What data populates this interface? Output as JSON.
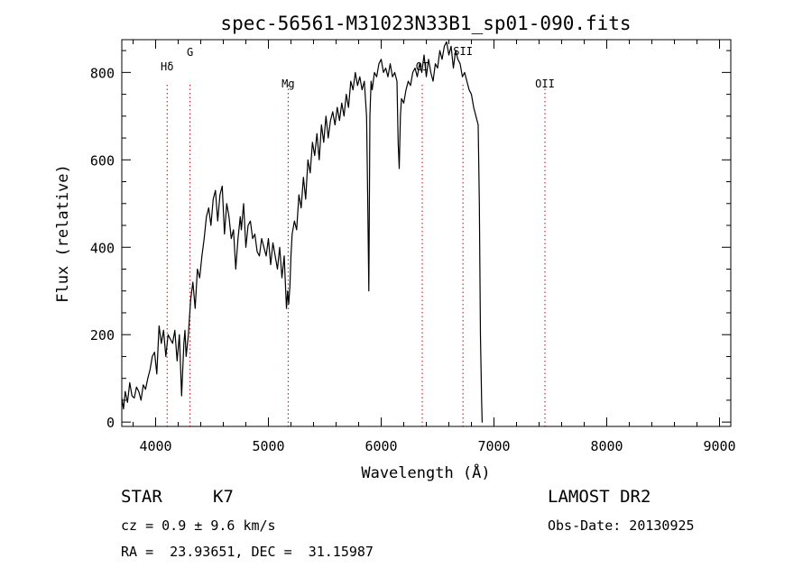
{
  "chart_data": {
    "type": "line",
    "title": "spec-56561-M31023N33B1_sp01-090.fits",
    "xlabel": "Wavelength (Å)",
    "ylabel": "Flux (relative)",
    "xlim": [
      3700,
      9100
    ],
    "ylim": [
      -10,
      875
    ],
    "x_ticks": [
      4000,
      5000,
      6000,
      7000,
      8000,
      9000
    ],
    "y_ticks": [
      0,
      200,
      400,
      600,
      800
    ],
    "grid": false,
    "series": [
      {
        "x": [
          3700,
          3715,
          3730,
          3750,
          3770,
          3790,
          3810,
          3830,
          3850,
          3870,
          3890,
          3910,
          3930,
          3950,
          3970,
          3990,
          4010,
          4030,
          4050,
          4070,
          4090,
          4110,
          4130,
          4150,
          4170,
          4190,
          4210,
          4230,
          4250,
          4260,
          4270,
          4290,
          4310,
          4330,
          4350,
          4370,
          4390,
          4410,
          4430,
          4450,
          4470,
          4490,
          4510,
          4530,
          4550,
          4570,
          4590,
          4610,
          4630,
          4650,
          4670,
          4690,
          4710,
          4730,
          4750,
          4760,
          4780,
          4800,
          4820,
          4840,
          4860,
          4880,
          4900,
          4920,
          4940,
          4960,
          4980,
          5000,
          5020,
          5040,
          5060,
          5080,
          5100,
          5120,
          5140,
          5160,
          5170,
          5180,
          5190,
          5200,
          5210,
          5230,
          5250,
          5270,
          5290,
          5310,
          5330,
          5350,
          5370,
          5390,
          5410,
          5430,
          5450,
          5470,
          5490,
          5510,
          5530,
          5550,
          5570,
          5590,
          5610,
          5630,
          5650,
          5670,
          5690,
          5710,
          5730,
          5750,
          5770,
          5790,
          5810,
          5830,
          5850,
          5870,
          5880,
          5890,
          5900,
          5910,
          5920,
          5940,
          5960,
          5980,
          6000,
          6020,
          6040,
          6060,
          6080,
          6100,
          6120,
          6140,
          6150,
          6160,
          6170,
          6180,
          6200,
          6220,
          6240,
          6260,
          6280,
          6300,
          6320,
          6340,
          6360,
          6380,
          6400,
          6420,
          6440,
          6460,
          6480,
          6500,
          6520,
          6540,
          6560,
          6580,
          6600,
          6620,
          6640,
          6660,
          6680,
          6700,
          6720,
          6740,
          6760,
          6780,
          6800,
          6820,
          6840,
          6860,
          6870,
          6880,
          6890,
          6895,
          6900
        ],
        "y": [
          55,
          30,
          70,
          45,
          90,
          60,
          55,
          80,
          70,
          50,
          85,
          75,
          100,
          120,
          150,
          160,
          110,
          220,
          180,
          210,
          150,
          200,
          190,
          180,
          210,
          140,
          200,
          60,
          180,
          210,
          150,
          200,
          280,
          320,
          260,
          350,
          330,
          380,
          420,
          470,
          490,
          450,
          510,
          530,
          460,
          520,
          540,
          430,
          500,
          470,
          420,
          440,
          350,
          420,
          470,
          440,
          500,
          400,
          450,
          460,
          420,
          430,
          390,
          380,
          420,
          400,
          380,
          420,
          360,
          410,
          380,
          350,
          400,
          330,
          380,
          260,
          300,
          270,
          310,
          380,
          430,
          460,
          440,
          520,
          490,
          560,
          510,
          600,
          570,
          640,
          610,
          660,
          600,
          680,
          640,
          700,
          650,
          690,
          710,
          680,
          720,
          690,
          730,
          700,
          750,
          720,
          780,
          760,
          800,
          770,
          790,
          760,
          780,
          700,
          520,
          300,
          700,
          780,
          760,
          800,
          790,
          820,
          830,
          800,
          810,
          790,
          820,
          790,
          800,
          780,
          640,
          580,
          700,
          740,
          730,
          760,
          780,
          770,
          800,
          810,
          790,
          820,
          800,
          840,
          790,
          830,
          800,
          780,
          820,
          810,
          850,
          830,
          860,
          870,
          840,
          860,
          810,
          850,
          830,
          820,
          790,
          800,
          780,
          760,
          750,
          720,
          700,
          680,
          500,
          200,
          50,
          0,
          0
        ]
      }
    ],
    "line_markers": [
      {
        "label": "Hδ",
        "x": 4102
      },
      {
        "label": "G",
        "x": 4305
      },
      {
        "label": "Mg",
        "x": 5175
      },
      {
        "label": "OI",
        "x": 6364
      },
      {
        "label": "SII",
        "x": 6725
      },
      {
        "label": "OII",
        "x": 7452
      }
    ]
  },
  "info": {
    "object_class": "STAR",
    "subclass": "K7",
    "survey": "LAMOST DR2",
    "redshift_line": "cz = 0.9 ± 9.6 km/s",
    "obs_date": "Obs-Date: 20130925",
    "coords": "RA =  23.93651, DEC =  31.15987"
  },
  "colors": {
    "line": "#000000",
    "marker": "#cc0000",
    "background": "#ffffff"
  }
}
